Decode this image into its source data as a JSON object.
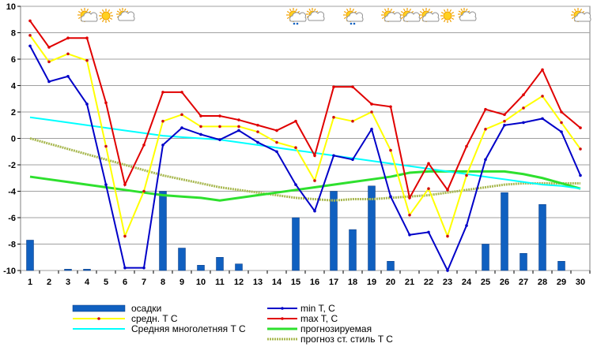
{
  "chart_data": {
    "type": "bar+line",
    "title": "",
    "xlabel": "",
    "ylabel": "",
    "ylim": [
      -10,
      10
    ],
    "yticks": [
      -10,
      -8,
      -6,
      -4,
      -2,
      0,
      2,
      4,
      6,
      8,
      10
    ],
    "grid": true,
    "legend_position": "bottom",
    "categories": [
      "1",
      "2",
      "3",
      "4",
      "5",
      "6",
      "7",
      "8",
      "9",
      "10",
      "11",
      "12",
      "13",
      "14",
      "15",
      "16",
      "17",
      "18",
      "19",
      "20",
      "21",
      "22",
      "23",
      "24",
      "25",
      "26",
      "27",
      "28",
      "29",
      "30"
    ],
    "bars": {
      "name": "осадки",
      "color": "#1060c0",
      "values": [
        -7.7,
        null,
        -9.9,
        -9.9,
        null,
        null,
        null,
        -4.0,
        -8.3,
        -9.6,
        -9.0,
        -9.5,
        null,
        null,
        -6.0,
        null,
        -4.0,
        -6.9,
        -3.6,
        -9.3,
        null,
        null,
        null,
        null,
        -8.0,
        -4.1,
        -8.7,
        -5.0,
        -9.3,
        null
      ]
    },
    "series": [
      {
        "name": "min T, C",
        "color": "#0000c8",
        "marker": true,
        "values": [
          7.0,
          4.3,
          4.7,
          2.6,
          -3.5,
          -9.8,
          -9.8,
          -0.5,
          0.8,
          0.3,
          -0.1,
          0.6,
          -0.3,
          -1.0,
          -3.5,
          -5.5,
          -1.3,
          -1.6,
          0.7,
          -4.4,
          -7.3,
          -7.1,
          -10.0,
          -6.6,
          -1.6,
          1.0,
          1.2,
          1.5,
          0.5,
          -2.8
        ]
      },
      {
        "name": "max T, C",
        "color": "#e00000",
        "marker": true,
        "values": [
          8.9,
          6.9,
          7.6,
          7.6,
          2.7,
          -3.5,
          -0.5,
          3.5,
          3.5,
          1.7,
          1.7,
          1.4,
          1.0,
          0.6,
          1.3,
          -1.3,
          3.9,
          3.9,
          2.6,
          2.4,
          -4.5,
          -1.9,
          -3.9,
          -0.6,
          2.2,
          1.8,
          3.3,
          5.2,
          2.0,
          0.8
        ]
      },
      {
        "name": "средн. T C",
        "color": "#ffff00",
        "marker": true,
        "values": [
          7.8,
          5.8,
          6.4,
          5.9,
          -0.6,
          -7.4,
          -4.0,
          1.3,
          1.8,
          0.9,
          0.9,
          0.9,
          0.5,
          -0.3,
          -0.7,
          -3.2,
          1.6,
          1.3,
          2.0,
          -0.9,
          -5.8,
          -3.8,
          -7.4,
          -2.8,
          0.7,
          1.3,
          2.3,
          3.2,
          1.2,
          -0.8
        ]
      },
      {
        "name": "прогнозируемая",
        "color": "#2ee02e",
        "marker": false,
        "values": [
          -2.9,
          -3.1,
          -3.3,
          -3.5,
          -3.7,
          -3.9,
          -4.1,
          -4.3,
          -4.4,
          -4.5,
          -4.7,
          -4.5,
          -4.3,
          -4.1,
          -3.9,
          -3.7,
          -3.5,
          -3.3,
          -3.1,
          -2.9,
          -2.6,
          -2.5,
          -2.5,
          -2.5,
          -2.5,
          -2.5,
          -2.7,
          -3.0,
          -3.4,
          -3.8
        ]
      },
      {
        "name": "Средняя многолетняя T C",
        "color": "#00ffff",
        "marker": false,
        "values": [
          1.6,
          1.4,
          1.2,
          1.0,
          0.8,
          0.6,
          0.4,
          0.2,
          0.1,
          0.0,
          -0.1,
          -0.3,
          -0.5,
          -0.7,
          -0.9,
          -1.1,
          -1.3,
          -1.5,
          -1.7,
          -1.9,
          -2.1,
          -2.3,
          -2.5,
          -2.7,
          -2.9,
          -3.1,
          -3.3,
          -3.5,
          -3.6,
          -3.8
        ]
      },
      {
        "name": "прогноз ст. стиль T C",
        "color": "#a8b850",
        "marker": false,
        "values": [
          0.0,
          -0.4,
          -0.8,
          -1.2,
          -1.6,
          -2.0,
          -2.4,
          -2.8,
          -3.1,
          -3.4,
          -3.7,
          -3.9,
          -4.1,
          -4.3,
          -4.5,
          -4.6,
          -4.7,
          -4.6,
          -4.6,
          -4.5,
          -4.4,
          -4.3,
          -4.1,
          -3.9,
          -3.7,
          -3.5,
          -3.4,
          -3.4,
          -3.4,
          -3.4
        ]
      }
    ],
    "legend_order": [
      "осадки",
      "min T, C",
      "средн. T C",
      "max T, C",
      "Средняя многолетняя T C",
      "прогнозируемая",
      "",
      "прогноз ст. стиль T C"
    ],
    "weather_icons": [
      {
        "day": 4,
        "icon": "partly-cloudy-icon"
      },
      {
        "day": 5,
        "icon": "sun-icon"
      },
      {
        "day": 6,
        "icon": "cloudy-icon"
      },
      {
        "day": 15,
        "icon": "partly-cloudy-rain-icon"
      },
      {
        "day": 16,
        "icon": "cloudy-icon"
      },
      {
        "day": 18,
        "icon": "partly-cloudy-rain-icon"
      },
      {
        "day": 20,
        "icon": "partly-cloudy-icon"
      },
      {
        "day": 21,
        "icon": "partly-cloudy-icon"
      },
      {
        "day": 22,
        "icon": "partly-cloudy-icon"
      },
      {
        "day": 23,
        "icon": "sun-icon"
      },
      {
        "day": 24,
        "icon": "cloudy-icon"
      },
      {
        "day": 30,
        "icon": "partly-cloudy-icon"
      }
    ]
  }
}
